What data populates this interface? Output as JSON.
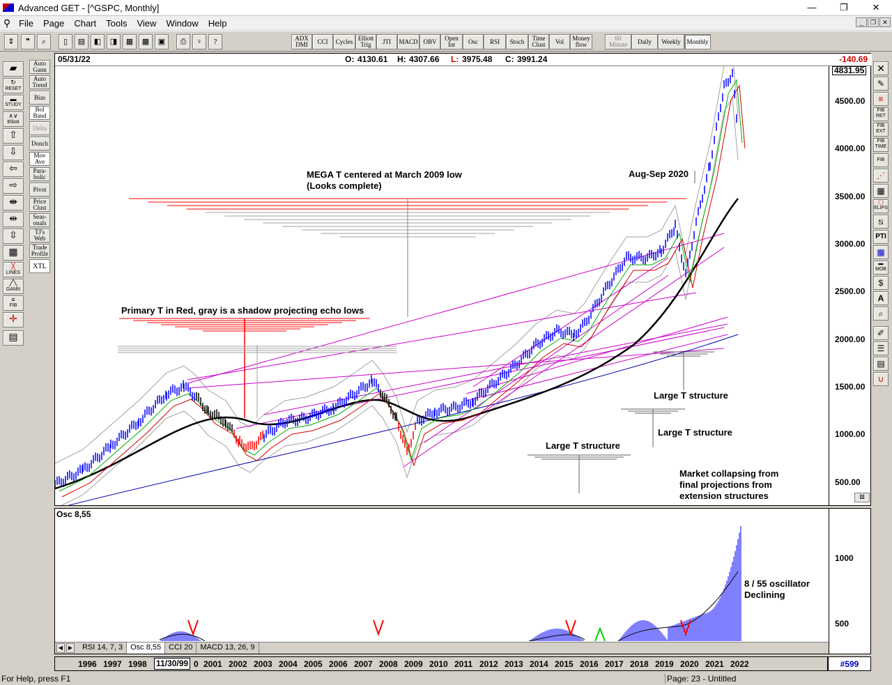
{
  "window": {
    "title": "Advanced GET - [^GSPC, Monthly]",
    "min": "—",
    "max": "❐",
    "close": "✕"
  },
  "menu": [
    "File",
    "Page",
    "Chart",
    "Tools",
    "View",
    "Window",
    "Help"
  ],
  "toolbar": {
    "indicators": [
      "ADX DMI",
      "CCI",
      "Cycles",
      "Elliott Trig",
      "JTI",
      "MACD",
      "OBV",
      "Open Int",
      "Osc",
      "RSI",
      "Stoch",
      "Time Clust",
      "Vol",
      "Money flow"
    ],
    "timeframes": [
      "60 Minute",
      "Daily",
      "Weekly",
      "Monthly"
    ],
    "selected_timeframe": "Monthly"
  },
  "left_tools": {
    "col1": [
      "RESET",
      "STUDY",
      "Elliott",
      "LINES",
      "GANN",
      "FIB"
    ],
    "col2": [
      "Auto Gann",
      "Auto Trend",
      "Bias",
      "Bol Band",
      "Delta",
      "Donch",
      "Mov Ave",
      "Para-bolic",
      "Pivot",
      "Price Clust",
      "Seas-onals",
      "TJ's Web",
      "Trade Profile",
      "XTL"
    ]
  },
  "right_tools": [
    "FIB RET",
    "FIB EXT",
    "FIB TIME",
    "FIB",
    "ELIPS",
    "PTI",
    "MOB",
    "A"
  ],
  "header": {
    "date": "05/31/22",
    "open_label": "O:",
    "open": "4130.61",
    "high_label": "H:",
    "high": "4307.66",
    "low_label": "L:",
    "low": "3975.48",
    "close_label": "C:",
    "close": "3991.24",
    "change": "-140.69"
  },
  "price_axis": {
    "current": "4831.95",
    "labels": [
      "4500.00",
      "4000.00",
      "3500.00",
      "3000.00",
      "2500.00",
      "2000.00",
      "1500.00",
      "1000.00",
      "500.00"
    ]
  },
  "annotations": {
    "mega": "MEGA T centered at March 2009 low\n(Looks complete)",
    "primary": "Primary T in Red, gray is a shadow projecting echo lows",
    "aug": "Aug-Sep 2020",
    "large1": "Large T structure",
    "large2": "Large T structure",
    "large3": "Large T structure",
    "collapse": "Market collapsing from\nfinal projections from\nextension structures",
    "osc_note": "8 / 55 oscillator\nDeclining"
  },
  "osc": {
    "label": "Osc 8,55",
    "axis": [
      "1000",
      "500"
    ]
  },
  "osc_tabs": [
    "RSI 14, 7, 3",
    "Osc 8,55",
    "CCI 20",
    "MACD 13, 26, 9"
  ],
  "active_osc_tab": "Osc 8,55",
  "years": [
    "1996",
    "1997",
    "1998",
    "11/30/99",
    "0",
    "2001",
    "2002",
    "2003",
    "2004",
    "2005",
    "2006",
    "2007",
    "2008",
    "2009",
    "2010",
    "2011",
    "2012",
    "2013",
    "2014",
    "2015",
    "2016",
    "2017",
    "2018",
    "2019",
    "2020",
    "2021",
    "2022"
  ],
  "bar_count": "#599",
  "status": {
    "help": "For Help, press F1",
    "page": "Page: 23 - Untitled"
  },
  "colors": {
    "price_bars": "#0000ff",
    "primary_t": "#ff0000",
    "trendlines": "#cc00cc",
    "ma_black": "#000000",
    "ma_green": "#00aa00",
    "ma_red": "#cc0000",
    "ma_blue": "#0000aa",
    "envelope": "#a0a0a0"
  }
}
